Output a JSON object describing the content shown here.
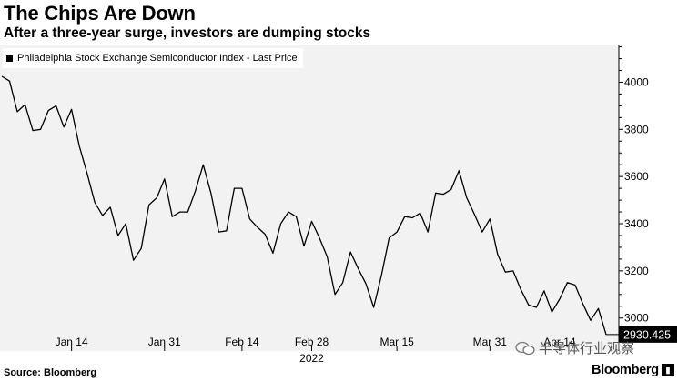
{
  "header": {
    "title": "The Chips Are Down",
    "subtitle": "After a three-year surge, investors are dumping stocks"
  },
  "footer": {
    "source": "Source: Bloomberg",
    "brand": "Bloomberg",
    "watermark": "半导体行业观察"
  },
  "colors": {
    "line": "#000000",
    "plot_bg": "#f2f2f2"
  },
  "chart_data": {
    "type": "line",
    "title": "The Chips Are Down",
    "subtitle": "After a three-year surge, investors are dumping stocks",
    "legend": "Philadelphia Stock Exchange Semiconductor Index - Last Price",
    "legend_position": "top-left",
    "last_value_label": "2930.425",
    "year_label": "2022",
    "ylim": [
      2860,
      4160
    ],
    "y_ticks": [
      3000,
      3200,
      3400,
      3600,
      3800,
      4000
    ],
    "y_tick_labels": [
      "3000",
      "3200",
      "3400",
      "3600",
      "3800",
      "4000"
    ],
    "grid": false,
    "x_tick_labels": [
      {
        "label": "Jan 14",
        "index": 9
      },
      {
        "label": "Jan 31",
        "index": 21
      },
      {
        "label": "Feb 14",
        "index": 31
      },
      {
        "label": "Feb 28",
        "index": 40
      },
      {
        "label": "Mar 15",
        "index": 51
      },
      {
        "label": "Mar 31",
        "index": 63
      },
      {
        "label": "Apr 14",
        "index": 72
      }
    ],
    "series": [
      {
        "values": [
          4025,
          4005,
          3875,
          3905,
          3795,
          3800,
          3880,
          3900,
          3810,
          3885,
          3730,
          3615,
          3490,
          3435,
          3470,
          3350,
          3400,
          3245,
          3295,
          3480,
          3510,
          3590,
          3430,
          3450,
          3450,
          3540,
          3650,
          3530,
          3365,
          3370,
          3550,
          3550,
          3420,
          3385,
          3355,
          3275,
          3400,
          3450,
          3430,
          3305,
          3410,
          3340,
          3260,
          3100,
          3150,
          3280,
          3210,
          3145,
          3045,
          3180,
          3340,
          3365,
          3430,
          3425,
          3445,
          3365,
          3530,
          3525,
          3545,
          3625,
          3510,
          3440,
          3365,
          3420,
          3270,
          3195,
          3200,
          3120,
          3055,
          3045,
          3115,
          3025,
          3080,
          3150,
          3140,
          3060,
          2990,
          3040,
          2930
        ]
      }
    ]
  }
}
